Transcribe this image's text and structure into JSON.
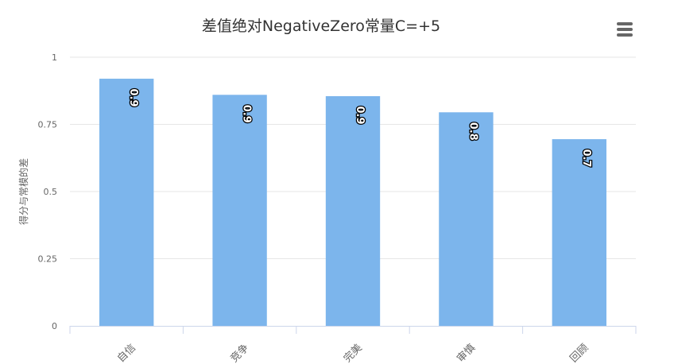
{
  "chart_data": {
    "type": "bar",
    "title": "差值绝对NegativeZero常量C=+5",
    "ylabel": "得分与常模的差",
    "xlabel": "",
    "categories": [
      "自信",
      "竞争",
      "完美",
      "审慎",
      "回顾"
    ],
    "values": [
      0.92,
      0.86,
      0.855,
      0.795,
      0.695
    ],
    "data_labels": [
      "0.9",
      "0.9",
      "0.9",
      "0.8",
      "0.7"
    ],
    "ylim": [
      0,
      1
    ],
    "yticks": [
      "0",
      "0.25",
      "0.5",
      "0.75",
      "1"
    ],
    "bar_color": "#7cb5ec",
    "grid": true,
    "legend": "none"
  },
  "toolbar": {
    "menu_icon": "hamburger-menu-icon"
  }
}
